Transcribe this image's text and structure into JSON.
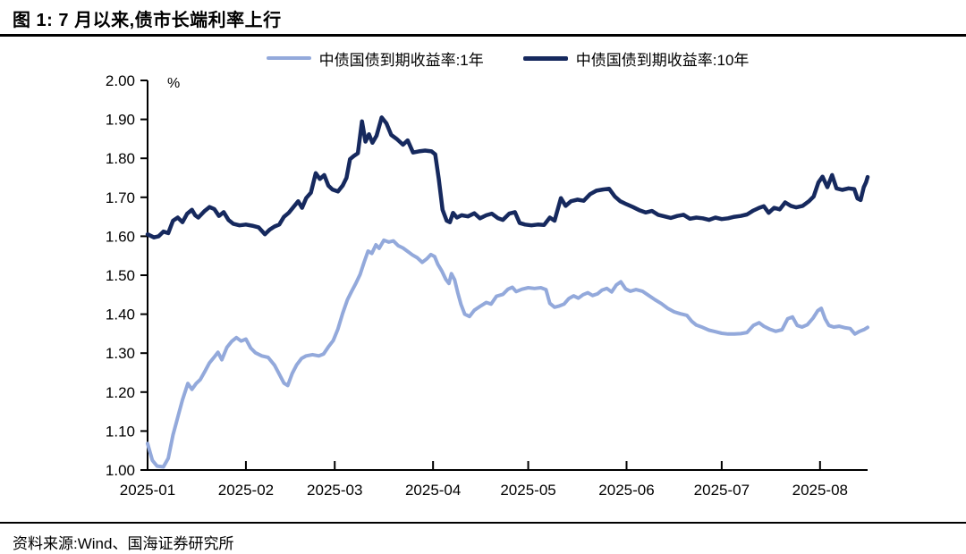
{
  "page": {
    "title": "图 1: 7 月以来,债市长端利率上行",
    "source": "资料来源:Wind、国海证券研究所"
  },
  "colors": {
    "series_1y": "#93A9DB",
    "series_10y": "#16295E",
    "axis": "#000000",
    "text": "#000000"
  },
  "chart_data": {
    "type": "line",
    "title": "图 1: 7 月以来,债市长端利率上行",
    "unit_label": "%",
    "grid": false,
    "legend_position": "top-center",
    "x_axis": {
      "domain_days": [
        0,
        227
      ],
      "tick_labels": [
        "2025-01",
        "2025-02",
        "2025-03",
        "2025-04",
        "2025-05",
        "2025-06",
        "2025-07",
        "2025-08"
      ],
      "tick_label_days": [
        0,
        31,
        59,
        90,
        120,
        151,
        181,
        212
      ],
      "inner_tick_days": [
        31,
        59,
        90,
        120,
        151,
        181,
        212
      ]
    },
    "y_axis": {
      "min": 1.0,
      "max": 2.0,
      "step": 0.1,
      "tick_labels": [
        "1.00",
        "1.10",
        "1.20",
        "1.30",
        "1.40",
        "1.50",
        "1.60",
        "1.70",
        "1.80",
        "1.90",
        "2.00"
      ]
    },
    "series": [
      {
        "name": "中债国债到期收益率:1年",
        "color": "#93A9DB",
        "stroke_width": 4,
        "points": [
          [
            0,
            1.068
          ],
          [
            1.5,
            1.025
          ],
          [
            3,
            1.01
          ],
          [
            5,
            1.008
          ],
          [
            6.5,
            1.03
          ],
          [
            8,
            1.09
          ],
          [
            9.5,
            1.135
          ],
          [
            11,
            1.18
          ],
          [
            12.7,
            1.222
          ],
          [
            14,
            1.207
          ],
          [
            15.3,
            1.222
          ],
          [
            16.6,
            1.232
          ],
          [
            18,
            1.252
          ],
          [
            19.5,
            1.275
          ],
          [
            21,
            1.29
          ],
          [
            22.2,
            1.302
          ],
          [
            23.4,
            1.283
          ],
          [
            25,
            1.315
          ],
          [
            26.5,
            1.33
          ],
          [
            28,
            1.34
          ],
          [
            29.5,
            1.331
          ],
          [
            31,
            1.336
          ],
          [
            32.5,
            1.313
          ],
          [
            34,
            1.301
          ],
          [
            36,
            1.293
          ],
          [
            38,
            1.289
          ],
          [
            40,
            1.269
          ],
          [
            41.5,
            1.246
          ],
          [
            43,
            1.223
          ],
          [
            44.2,
            1.217
          ],
          [
            45.6,
            1.248
          ],
          [
            47,
            1.27
          ],
          [
            48.5,
            1.286
          ],
          [
            50,
            1.293
          ],
          [
            52,
            1.296
          ],
          [
            54,
            1.293
          ],
          [
            55.5,
            1.298
          ],
          [
            57,
            1.316
          ],
          [
            58.5,
            1.332
          ],
          [
            60,
            1.362
          ],
          [
            61.5,
            1.402
          ],
          [
            63,
            1.437
          ],
          [
            64.3,
            1.458
          ],
          [
            65.6,
            1.478
          ],
          [
            67,
            1.502
          ],
          [
            68.2,
            1.532
          ],
          [
            69.5,
            1.562
          ],
          [
            70.7,
            1.556
          ],
          [
            72,
            1.578
          ],
          [
            73,
            1.569
          ],
          [
            74.5,
            1.59
          ],
          [
            76,
            1.585
          ],
          [
            77.5,
            1.588
          ],
          [
            79,
            1.576
          ],
          [
            80.5,
            1.57
          ],
          [
            82,
            1.561
          ],
          [
            83.5,
            1.552
          ],
          [
            85,
            1.545
          ],
          [
            86.6,
            1.533
          ],
          [
            88,
            1.542
          ],
          [
            89.3,
            1.553
          ],
          [
            90.5,
            1.548
          ],
          [
            91.5,
            1.528
          ],
          [
            92.7,
            1.512
          ],
          [
            94,
            1.49
          ],
          [
            95,
            1.479
          ],
          [
            95.8,
            1.504
          ],
          [
            96.8,
            1.488
          ],
          [
            97.8,
            1.455
          ],
          [
            98.8,
            1.425
          ],
          [
            100,
            1.4
          ],
          [
            101.5,
            1.394
          ],
          [
            103,
            1.41
          ],
          [
            105,
            1.421
          ],
          [
            106.8,
            1.43
          ],
          [
            108.3,
            1.426
          ],
          [
            110,
            1.446
          ],
          [
            112,
            1.451
          ],
          [
            113.6,
            1.464
          ],
          [
            115,
            1.469
          ],
          [
            116.2,
            1.458
          ],
          [
            118,
            1.464
          ],
          [
            120,
            1.468
          ],
          [
            122,
            1.466
          ],
          [
            124,
            1.468
          ],
          [
            125.6,
            1.463
          ],
          [
            126.8,
            1.428
          ],
          [
            128.3,
            1.418
          ],
          [
            129.8,
            1.421
          ],
          [
            131.3,
            1.426
          ],
          [
            132.8,
            1.44
          ],
          [
            134.3,
            1.447
          ],
          [
            135.8,
            1.441
          ],
          [
            137.3,
            1.45
          ],
          [
            138.8,
            1.455
          ],
          [
            140.3,
            1.448
          ],
          [
            141.8,
            1.452
          ],
          [
            143.3,
            1.462
          ],
          [
            144.8,
            1.466
          ],
          [
            146.3,
            1.457
          ],
          [
            147.8,
            1.475
          ],
          [
            149.2,
            1.483
          ],
          [
            150.7,
            1.465
          ],
          [
            152.2,
            1.459
          ],
          [
            154,
            1.463
          ],
          [
            156,
            1.459
          ],
          [
            158,
            1.448
          ],
          [
            160,
            1.437
          ],
          [
            162,
            1.427
          ],
          [
            164,
            1.415
          ],
          [
            166,
            1.406
          ],
          [
            168,
            1.401
          ],
          [
            170,
            1.397
          ],
          [
            171.5,
            1.382
          ],
          [
            173,
            1.372
          ],
          [
            175,
            1.366
          ],
          [
            177,
            1.359
          ],
          [
            179,
            1.355
          ],
          [
            181,
            1.351
          ],
          [
            183,
            1.349
          ],
          [
            185,
            1.349
          ],
          [
            187,
            1.35
          ],
          [
            189,
            1.353
          ],
          [
            191,
            1.371
          ],
          [
            192.8,
            1.378
          ],
          [
            194.3,
            1.369
          ],
          [
            196,
            1.362
          ],
          [
            198,
            1.356
          ],
          [
            200,
            1.36
          ],
          [
            201.8,
            1.388
          ],
          [
            203.3,
            1.393
          ],
          [
            204.8,
            1.371
          ],
          [
            206.3,
            1.367
          ],
          [
            208,
            1.373
          ],
          [
            209.8,
            1.39
          ],
          [
            211.3,
            1.409
          ],
          [
            212.4,
            1.415
          ],
          [
            213.6,
            1.388
          ],
          [
            214.8,
            1.371
          ],
          [
            216.3,
            1.367
          ],
          [
            218,
            1.369
          ],
          [
            220,
            1.365
          ],
          [
            221.5,
            1.363
          ],
          [
            223,
            1.349
          ],
          [
            224.5,
            1.356
          ],
          [
            226,
            1.361
          ],
          [
            227,
            1.366
          ]
        ]
      },
      {
        "name": "中债国债到期收益率:10年",
        "color": "#16295E",
        "stroke_width": 4.5,
        "points": [
          [
            0,
            1.605
          ],
          [
            2,
            1.597
          ],
          [
            3.5,
            1.6
          ],
          [
            5,
            1.612
          ],
          [
            6.5,
            1.608
          ],
          [
            8,
            1.64
          ],
          [
            9.5,
            1.648
          ],
          [
            11,
            1.636
          ],
          [
            12.5,
            1.658
          ],
          [
            14,
            1.668
          ],
          [
            15,
            1.654
          ],
          [
            16,
            1.648
          ],
          [
            18,
            1.665
          ],
          [
            19.5,
            1.675
          ],
          [
            21,
            1.67
          ],
          [
            22.5,
            1.652
          ],
          [
            24,
            1.662
          ],
          [
            25.5,
            1.642
          ],
          [
            27,
            1.632
          ],
          [
            29,
            1.628
          ],
          [
            31,
            1.63
          ],
          [
            33,
            1.627
          ],
          [
            35,
            1.623
          ],
          [
            37,
            1.605
          ],
          [
            38.5,
            1.617
          ],
          [
            40,
            1.625
          ],
          [
            41.5,
            1.63
          ],
          [
            43,
            1.65
          ],
          [
            44.5,
            1.66
          ],
          [
            46,
            1.675
          ],
          [
            47.5,
            1.69
          ],
          [
            48.7,
            1.673
          ],
          [
            50,
            1.698
          ],
          [
            51.5,
            1.712
          ],
          [
            53,
            1.762
          ],
          [
            54.3,
            1.747
          ],
          [
            55.7,
            1.757
          ],
          [
            57,
            1.73
          ],
          [
            58.3,
            1.72
          ],
          [
            60,
            1.715
          ],
          [
            61.5,
            1.73
          ],
          [
            62.7,
            1.75
          ],
          [
            63.8,
            1.798
          ],
          [
            65,
            1.806
          ],
          [
            66.3,
            1.813
          ],
          [
            67.6,
            1.895
          ],
          [
            68.7,
            1.843
          ],
          [
            69.8,
            1.862
          ],
          [
            70.9,
            1.84
          ],
          [
            72.2,
            1.858
          ],
          [
            73.8,
            1.905
          ],
          [
            75.3,
            1.89
          ],
          [
            76.8,
            1.86
          ],
          [
            78.5,
            1.85
          ],
          [
            80.5,
            1.835
          ],
          [
            82,
            1.846
          ],
          [
            83.7,
            1.815
          ],
          [
            85.5,
            1.818
          ],
          [
            87.5,
            1.82
          ],
          [
            89.5,
            1.818
          ],
          [
            90.7,
            1.81
          ],
          [
            91.8,
            1.748
          ],
          [
            93,
            1.668
          ],
          [
            94.3,
            1.64
          ],
          [
            95.3,
            1.636
          ],
          [
            96.3,
            1.66
          ],
          [
            97.5,
            1.648
          ],
          [
            99,
            1.654
          ],
          [
            101,
            1.651
          ],
          [
            103,
            1.659
          ],
          [
            104.8,
            1.646
          ],
          [
            106.8,
            1.654
          ],
          [
            108.5,
            1.658
          ],
          [
            110.5,
            1.646
          ],
          [
            112,
            1.642
          ],
          [
            114,
            1.658
          ],
          [
            115.8,
            1.662
          ],
          [
            117.3,
            1.634
          ],
          [
            119,
            1.63
          ],
          [
            121,
            1.628
          ],
          [
            123,
            1.63
          ],
          [
            125,
            1.629
          ],
          [
            126.8,
            1.648
          ],
          [
            128.3,
            1.64
          ],
          [
            130.3,
            1.698
          ],
          [
            131.8,
            1.678
          ],
          [
            133.5,
            1.69
          ],
          [
            135.5,
            1.694
          ],
          [
            137.5,
            1.691
          ],
          [
            139.5,
            1.708
          ],
          [
            141.5,
            1.717
          ],
          [
            143.5,
            1.72
          ],
          [
            145.5,
            1.722
          ],
          [
            147.3,
            1.702
          ],
          [
            149,
            1.69
          ],
          [
            151,
            1.682
          ],
          [
            153,
            1.675
          ],
          [
            155,
            1.667
          ],
          [
            157,
            1.661
          ],
          [
            159,
            1.665
          ],
          [
            161,
            1.655
          ],
          [
            163,
            1.651
          ],
          [
            165,
            1.647
          ],
          [
            167,
            1.652
          ],
          [
            169,
            1.655
          ],
          [
            171,
            1.645
          ],
          [
            173,
            1.648
          ],
          [
            175,
            1.646
          ],
          [
            177,
            1.642
          ],
          [
            179,
            1.648
          ],
          [
            181,
            1.644
          ],
          [
            183,
            1.646
          ],
          [
            185,
            1.65
          ],
          [
            187,
            1.652
          ],
          [
            189,
            1.656
          ],
          [
            191,
            1.666
          ],
          [
            192.8,
            1.673
          ],
          [
            194.3,
            1.677
          ],
          [
            195.8,
            1.66
          ],
          [
            197.5,
            1.673
          ],
          [
            199.3,
            1.669
          ],
          [
            201,
            1.687
          ],
          [
            202.8,
            1.678
          ],
          [
            204.5,
            1.674
          ],
          [
            206.5,
            1.678
          ],
          [
            208.5,
            1.69
          ],
          [
            210,
            1.702
          ],
          [
            211.5,
            1.738
          ],
          [
            212.8,
            1.753
          ],
          [
            214.3,
            1.726
          ],
          [
            215.8,
            1.757
          ],
          [
            217.2,
            1.723
          ],
          [
            219,
            1.719
          ],
          [
            221,
            1.723
          ],
          [
            222.8,
            1.721
          ],
          [
            223.8,
            1.697
          ],
          [
            224.8,
            1.693
          ],
          [
            225.8,
            1.726
          ],
          [
            226.5,
            1.738
          ],
          [
            227,
            1.752
          ]
        ]
      }
    ]
  }
}
